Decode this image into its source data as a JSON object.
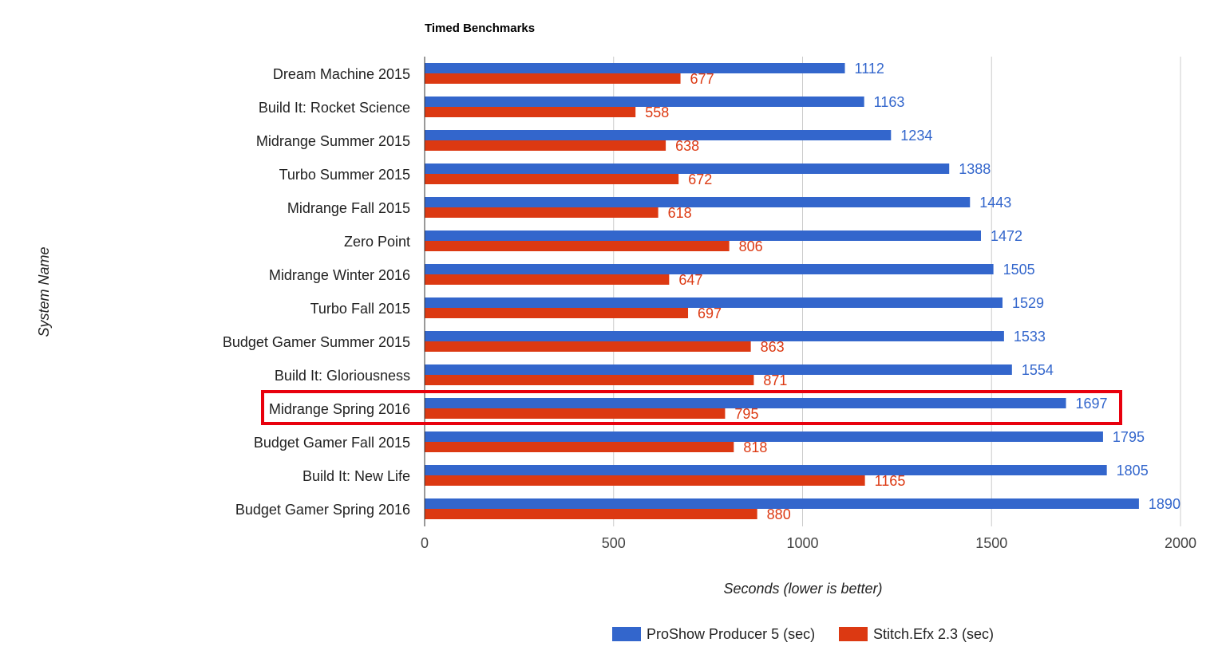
{
  "chart_data": {
    "type": "bar",
    "orientation": "horizontal",
    "title": "Timed Benchmarks",
    "xlabel": "Seconds (lower is better)",
    "ylabel": "System Name",
    "xlim": [
      0,
      2000
    ],
    "xticks": [
      0,
      500,
      1000,
      1500,
      2000
    ],
    "grid": true,
    "legend_position": "bottom",
    "categories": [
      "Dream Machine 2015",
      "Build It: Rocket Science",
      "Midrange Summer 2015",
      "Turbo Summer 2015",
      "Midrange Fall 2015",
      "Zero Point",
      "Midrange Winter 2016",
      "Turbo Fall 2015",
      "Budget Gamer Summer 2015",
      "Build It: Gloriousness",
      "Midrange Spring 2016",
      "Budget Gamer Fall 2015",
      "Build It: New Life",
      "Budget Gamer Spring 2016"
    ],
    "series": [
      {
        "name": "ProShow Producer 5 (sec)",
        "color": "#3366cc",
        "values": [
          1112,
          1163,
          1234,
          1388,
          1443,
          1472,
          1505,
          1529,
          1533,
          1554,
          1697,
          1795,
          1805,
          1890
        ]
      },
      {
        "name": "Stitch.Efx 2.3 (sec)",
        "color": "#dc3912",
        "values": [
          677,
          558,
          638,
          672,
          618,
          806,
          647,
          697,
          863,
          871,
          795,
          818,
          1165,
          880
        ]
      }
    ],
    "highlight": {
      "category": "Midrange Spring 2016",
      "color": "#e8000d"
    }
  }
}
